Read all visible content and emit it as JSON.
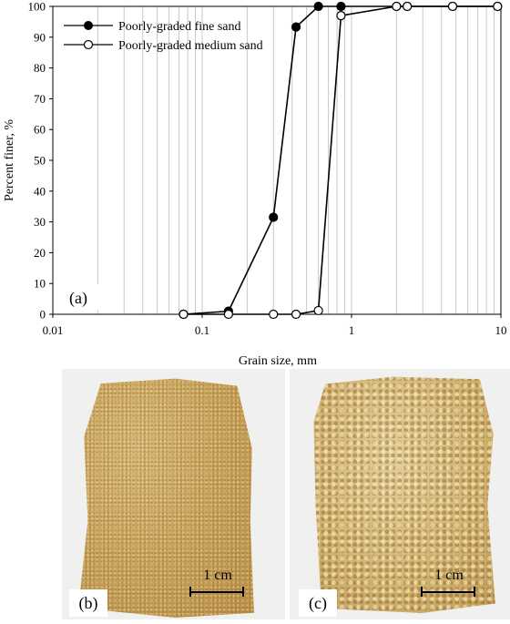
{
  "chart_data": {
    "type": "scatter",
    "xlabel": "Grain size, mm",
    "ylabel": "Percent finer, %",
    "xscale": "log",
    "xlim": [
      0.01,
      10
    ],
    "ylim": [
      0,
      100
    ],
    "xticks": [
      0.01,
      0.1,
      1,
      10
    ],
    "xtick_labels": [
      "0.01",
      "0.1",
      "1",
      "10"
    ],
    "yticks": [
      0,
      10,
      20,
      30,
      40,
      50,
      60,
      70,
      80,
      90,
      100
    ],
    "ytick_labels": [
      "0",
      "10",
      "20",
      "30",
      "40",
      "50",
      "60",
      "70",
      "80",
      "90",
      "100"
    ],
    "grid": "vertical minor log lines",
    "legend_position": "top-left",
    "panel_label": "(a)",
    "series": [
      {
        "name": "Poorly-graded fine sand",
        "marker": "filled-circle",
        "x": [
          0.075,
          0.15,
          0.3,
          0.425,
          0.6,
          0.85,
          2.0,
          2.36,
          4.75,
          9.5
        ],
        "y": [
          0,
          1,
          31.5,
          93.3,
          100,
          100,
          100,
          100,
          100,
          100
        ]
      },
      {
        "name": "Poorly-graded medium sand",
        "marker": "open-circle",
        "x": [
          0.075,
          0.15,
          0.3,
          0.425,
          0.6,
          0.85,
          2.0,
          2.36,
          4.75,
          9.5
        ],
        "y": [
          0,
          0,
          0,
          0,
          1.2,
          97,
          100,
          100,
          100,
          100
        ]
      }
    ]
  },
  "photos": {
    "b": {
      "tag": "(b)",
      "scale": "1 cm"
    },
    "c": {
      "tag": "(c)",
      "scale": "1 cm"
    }
  }
}
